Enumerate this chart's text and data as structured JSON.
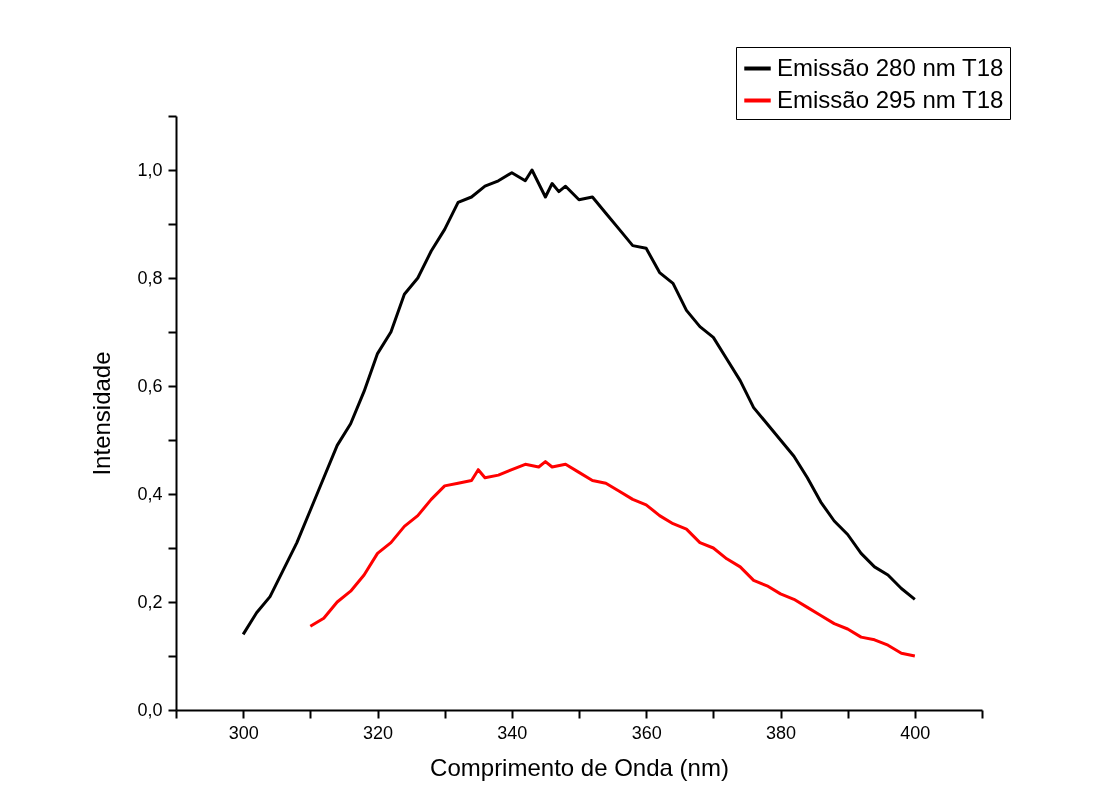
{
  "chart_data": {
    "type": "line",
    "xlabel": "Comprimento de Onda (nm)",
    "ylabel": "Intensidade",
    "xlim": [
      290,
      410
    ],
    "ylim": [
      0,
      1.1
    ],
    "xticks": [
      {
        "value": 290,
        "label": null
      },
      300,
      {
        "value": 310,
        "label": null
      },
      320,
      {
        "value": 330,
        "label": null
      },
      340,
      {
        "value": 350,
        "label": null
      },
      360,
      {
        "value": 370,
        "label": null
      },
      380,
      {
        "value": 390,
        "label": null
      },
      400,
      {
        "value": 410,
        "label": null
      }
    ],
    "yticks": [
      {
        "value": 0,
        "label": "0,0"
      },
      {
        "value": 0.1,
        "label": null
      },
      {
        "value": 0.2,
        "label": "0,2"
      },
      {
        "value": 0.3,
        "label": null
      },
      {
        "value": 0.4,
        "label": "0,4"
      },
      {
        "value": 0.5,
        "label": null
      },
      {
        "value": 0.6,
        "label": "0,6"
      },
      {
        "value": 0.7,
        "label": null
      },
      {
        "value": 0.8,
        "label": "0,8"
      },
      {
        "value": 0.9,
        "label": null
      },
      {
        "value": 1.0,
        "label": "1,0"
      },
      {
        "value": 1.1,
        "label": null
      }
    ],
    "grid": false,
    "legend": "top right",
    "marker": "none",
    "line_style": "solid",
    "series": [
      {
        "name": "Emissão 280 nm T18",
        "color": "#000000",
        "x": [
          300,
          302,
          304,
          306,
          308,
          310,
          312,
          314,
          316,
          318,
          320,
          322,
          324,
          326,
          328,
          330,
          332,
          334,
          336,
          338,
          340,
          342,
          343,
          345,
          346,
          347,
          348,
          350,
          352,
          354,
          356,
          358,
          360,
          362,
          364,
          366,
          368,
          370,
          372,
          374,
          376,
          378,
          380,
          382,
          384,
          386,
          388,
          390,
          392,
          394,
          396,
          398,
          400
        ],
        "values": [
          0.14,
          0.18,
          0.21,
          0.26,
          0.31,
          0.37,
          0.43,
          0.49,
          0.53,
          0.59,
          0.66,
          0.7,
          0.77,
          0.8,
          0.85,
          0.89,
          0.94,
          0.95,
          0.97,
          0.98,
          0.995,
          0.98,
          1.0,
          0.95,
          0.975,
          0.96,
          0.97,
          0.945,
          0.95,
          0.92,
          0.89,
          0.86,
          0.855,
          0.81,
          0.79,
          0.74,
          0.71,
          0.69,
          0.65,
          0.61,
          0.56,
          0.53,
          0.5,
          0.47,
          0.43,
          0.385,
          0.35,
          0.325,
          0.29,
          0.265,
          0.25,
          0.225,
          0.205
        ]
      },
      {
        "name": "Emissão 295 nm T18",
        "color": "#ff0000",
        "x": [
          310,
          312,
          314,
          316,
          318,
          320,
          322,
          324,
          326,
          328,
          330,
          332,
          334,
          335,
          336,
          338,
          340,
          342,
          344,
          345,
          346,
          348,
          350,
          352,
          354,
          356,
          358,
          360,
          362,
          364,
          366,
          368,
          370,
          372,
          374,
          376,
          378,
          380,
          382,
          384,
          386,
          388,
          390,
          392,
          394,
          396,
          398,
          400
        ],
        "values": [
          0.155,
          0.17,
          0.2,
          0.22,
          0.25,
          0.29,
          0.31,
          0.34,
          0.36,
          0.39,
          0.415,
          0.42,
          0.425,
          0.445,
          0.43,
          0.435,
          0.445,
          0.455,
          0.45,
          0.46,
          0.45,
          0.455,
          0.44,
          0.425,
          0.42,
          0.405,
          0.39,
          0.38,
          0.36,
          0.345,
          0.335,
          0.31,
          0.3,
          0.28,
          0.265,
          0.24,
          0.23,
          0.215,
          0.205,
          0.19,
          0.175,
          0.16,
          0.15,
          0.135,
          0.13,
          0.12,
          0.105,
          0.1
        ]
      }
    ]
  }
}
